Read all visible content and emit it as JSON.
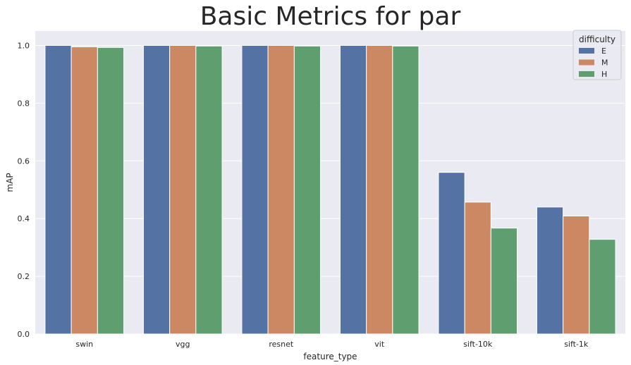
{
  "chart_data": {
    "type": "bar",
    "title": "Basic Metrics for par",
    "xlabel": "feature_type",
    "ylabel": "mAP",
    "ylim": [
      0,
      1.05
    ],
    "yticks": [
      0.0,
      0.2,
      0.4,
      0.6,
      0.8,
      1.0
    ],
    "ytick_labels": [
      "0.0",
      "0.2",
      "0.4",
      "0.6",
      "0.8",
      "1.0"
    ],
    "grid": true,
    "categories": [
      "swin",
      "vgg",
      "resnet",
      "vit",
      "sift-10k",
      "sift-1k"
    ],
    "legend": {
      "title": "difficulty",
      "placement": "top-right"
    },
    "series": [
      {
        "name": "E",
        "color": "#5572a4",
        "values": [
          1.0,
          1.0,
          1.0,
          1.0,
          0.56,
          0.44
        ]
      },
      {
        "name": "M",
        "color": "#cc8863",
        "values": [
          0.995,
          1.0,
          1.0,
          1.0,
          0.457,
          0.409
        ]
      },
      {
        "name": "H",
        "color": "#5e9e6f",
        "values": [
          0.993,
          0.998,
          0.998,
          0.998,
          0.367,
          0.328
        ]
      }
    ],
    "style": {
      "plot_bg": "#eaeaf2",
      "grid_color": "#ffffff",
      "text_color": "#262626"
    }
  }
}
